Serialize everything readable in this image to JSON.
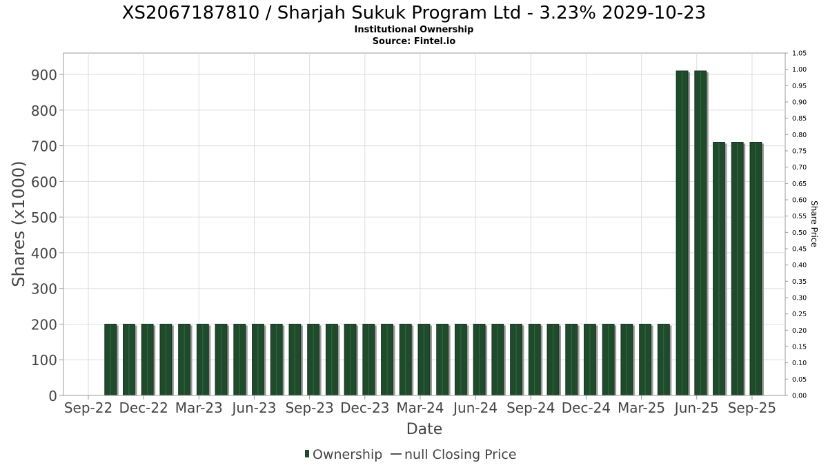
{
  "chart_data": {
    "type": "bar",
    "title": "XS2067187810 / Sharjah Sukuk Program Ltd - 3.23% 2029-10-23",
    "subtitle_1": "Institutional Ownership",
    "subtitle_2": "Source: Fintel.io",
    "xlabel": "Date",
    "ylabel": "Shares (x1000)",
    "ylabel_right": "Share Price",
    "ylim": [
      0,
      960
    ],
    "ylim_right": [
      0,
      1.05
    ],
    "yticks": [
      "0",
      "100",
      "200",
      "300",
      "400",
      "500",
      "600",
      "700",
      "800",
      "900"
    ],
    "yticks_right": [
      "0.00",
      "0.05",
      "0.10",
      "0.15",
      "0.20",
      "0.25",
      "0.30",
      "0.35",
      "0.40",
      "0.45",
      "0.50",
      "0.55",
      "0.60",
      "0.65",
      "0.70",
      "0.75",
      "0.80",
      "0.85",
      "0.90",
      "0.95",
      "1.00",
      "1.05"
    ],
    "xticks": [
      "Sep-22",
      "Dec-22",
      "Mar-23",
      "Jun-23",
      "Sep-23",
      "Dec-23",
      "Mar-24",
      "Jun-24",
      "Sep-24",
      "Dec-24",
      "Mar-25",
      "Jun-25",
      "Sep-25"
    ],
    "x_start": "2022-09",
    "series": [
      {
        "name": "Ownership",
        "color": "#1f4a2c",
        "values": [
          200,
          200,
          200,
          200,
          200,
          200,
          200,
          200,
          200,
          200,
          200,
          200,
          200,
          200,
          200,
          200,
          200,
          200,
          200,
          200,
          200,
          200,
          200,
          200,
          200,
          200,
          200,
          200,
          200,
          200,
          200,
          910,
          910,
          710,
          710,
          710
        ]
      }
    ],
    "legend": [
      {
        "label": "Ownership",
        "marker": "bar",
        "color": "#1f4a2c"
      },
      {
        "label": "null Closing Price",
        "marker": "line",
        "color": "#555555"
      }
    ],
    "legend_position": "bottom",
    "grid": true
  }
}
